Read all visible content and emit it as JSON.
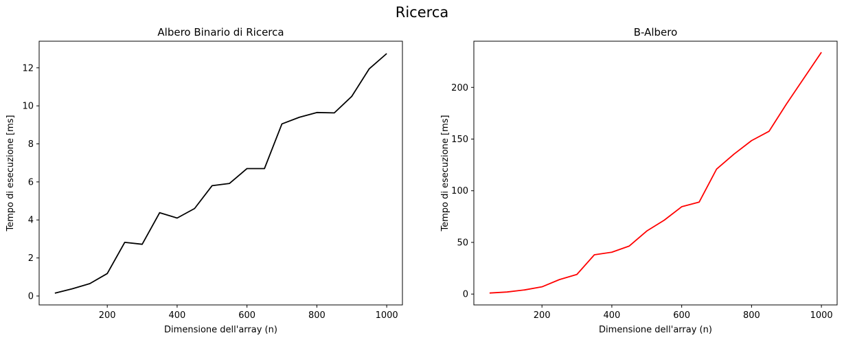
{
  "figure": {
    "suptitle": "Ricerca"
  },
  "chart_data": [
    {
      "type": "line",
      "title": "Albero Binario di Ricerca",
      "xlabel": "Dimensione dell'array (n)",
      "ylabel": "Tempo di esecuzione [ms]",
      "x": [
        50,
        100,
        150,
        200,
        250,
        300,
        350,
        400,
        450,
        500,
        550,
        600,
        650,
        700,
        750,
        800,
        850,
        900,
        950,
        1000
      ],
      "series": [
        {
          "values": [
            0.15,
            0.38,
            0.65,
            1.18,
            2.82,
            2.72,
            4.38,
            4.1,
            4.6,
            5.8,
            5.92,
            6.7,
            6.7,
            9.05,
            9.4,
            9.65,
            9.63,
            10.5,
            11.95,
            12.75
          ],
          "color": "#000000"
        }
      ],
      "xlim": [
        5,
        1045
      ],
      "ylim": [
        -0.47,
        13.4
      ],
      "xticks": [
        200,
        400,
        600,
        800,
        1000
      ],
      "yticks": [
        0,
        2,
        4,
        6,
        8,
        10,
        12
      ],
      "grid": false
    },
    {
      "type": "line",
      "title": "B-Albero",
      "xlabel": "Dimensione dell'array (n)",
      "ylabel": "Tempo di esecuzione [ms]",
      "x": [
        50,
        100,
        150,
        200,
        250,
        300,
        350,
        400,
        450,
        500,
        550,
        600,
        650,
        700,
        750,
        800,
        850,
        900,
        950,
        1000
      ],
      "series": [
        {
          "values": [
            1,
            2,
            4,
            7,
            14,
            19,
            38,
            40.5,
            46.5,
            61,
            71.5,
            84.5,
            89,
            121,
            135.5,
            148.5,
            157.5,
            184,
            209,
            234
          ],
          "color": "#ff0000"
        }
      ],
      "xlim": [
        5,
        1045
      ],
      "ylim": [
        -10.5,
        244.7
      ],
      "xticks": [
        200,
        400,
        600,
        800,
        1000
      ],
      "yticks": [
        0,
        50,
        100,
        150,
        200
      ],
      "grid": false
    }
  ]
}
